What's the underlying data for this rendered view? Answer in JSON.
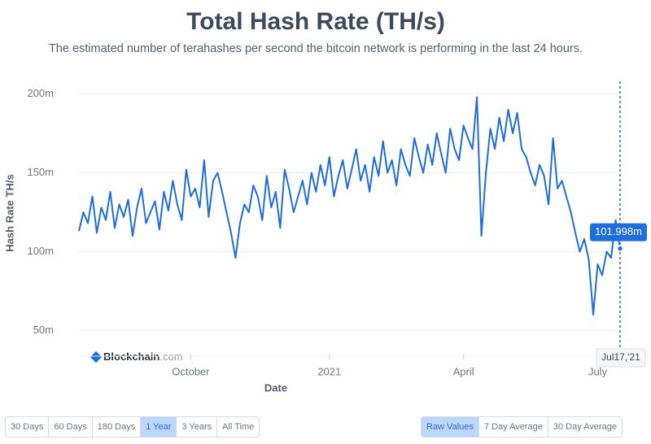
{
  "chart_data": {
    "type": "line",
    "title": "Total Hash Rate (TH/s)",
    "subtitle": "The estimated number of terahashes per second the bitcoin network is performing in the last 24 hours.",
    "y_label": "Hash Rate TH/s",
    "x_label": "Date",
    "brand": [
      "Blockchain",
      ".com"
    ],
    "categories": [
      null,
      null,
      null,
      null,
      null,
      null,
      null,
      null,
      null,
      null,
      null,
      null,
      null,
      null,
      null,
      null,
      null,
      null,
      null,
      null,
      null,
      null,
      null,
      null,
      null,
      "October",
      null,
      null,
      null,
      null,
      null,
      null,
      null,
      null,
      null,
      null,
      null,
      null,
      null,
      null,
      null,
      null,
      null,
      null,
      null,
      null,
      null,
      null,
      null,
      null,
      null,
      null,
      null,
      null,
      null,
      null,
      "2021",
      null,
      null,
      null,
      null,
      null,
      null,
      null,
      null,
      null,
      null,
      null,
      null,
      null,
      null,
      null,
      null,
      null,
      null,
      null,
      null,
      null,
      null,
      null,
      null,
      null,
      null,
      null,
      null,
      null,
      "April",
      null,
      null,
      null,
      null,
      null,
      null,
      null,
      null,
      null,
      null,
      null,
      null,
      null,
      null,
      null,
      null,
      null,
      null,
      null,
      null,
      null,
      null,
      null,
      null,
      null,
      null,
      null,
      null,
      null,
      "July",
      null,
      null,
      null,
      null,
      null
    ],
    "series": [
      {
        "name": "Hash Rate",
        "color": "#1e6fdc",
        "values": [
          113,
          125,
          118,
          135,
          112,
          128,
          120,
          138,
          115,
          130,
          122,
          133,
          110,
          128,
          140,
          118,
          125,
          132,
          114,
          138,
          126,
          145,
          130,
          120,
          152,
          135,
          140,
          128,
          158,
          122,
          145,
          150,
          138,
          125,
          112,
          96,
          118,
          130,
          125,
          142,
          135,
          120,
          148,
          128,
          138,
          115,
          152,
          140,
          125,
          135,
          145,
          130,
          150,
          138,
          155,
          142,
          160,
          135,
          148,
          158,
          140,
          152,
          165,
          145,
          155,
          138,
          160,
          148,
          170,
          150,
          158,
          142,
          165,
          155,
          148,
          172,
          160,
          150,
          168,
          155,
          175,
          162,
          150,
          178,
          165,
          158,
          180,
          172,
          165,
          198,
          110,
          150,
          178,
          165,
          185,
          170,
          190,
          175,
          188,
          165,
          160,
          150,
          142,
          155,
          148,
          130,
          172,
          140,
          145,
          135,
          125,
          112,
          100,
          108,
          95,
          60,
          92,
          85,
          100,
          96,
          120,
          101.998
        ]
      }
    ],
    "ylim": [
      43,
      208
    ],
    "yticks": [
      {
        "value": 50,
        "label": "50m"
      },
      {
        "value": 100,
        "label": "100m"
      },
      {
        "value": 150,
        "label": "150m"
      },
      {
        "value": 200,
        "label": "200m"
      }
    ],
    "grid": true,
    "tooltip": {
      "value_label": "101.998m",
      "date_label": "Jul17,'21"
    }
  },
  "controls": {
    "ranges": [
      "30 Days",
      "60 Days",
      "180 Days",
      "1 Year",
      "3 Years",
      "All Time"
    ],
    "selected_range": "1 Year",
    "averages": [
      "Raw Values",
      "7 Day Average",
      "30 Day Average"
    ],
    "selected_average": "Raw Values"
  }
}
